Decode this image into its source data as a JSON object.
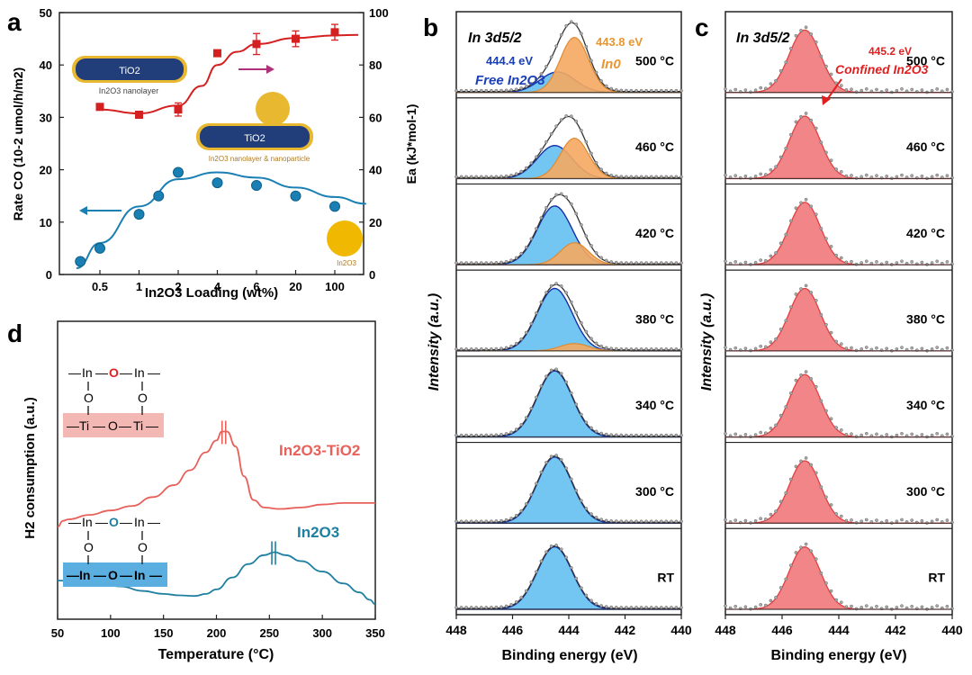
{
  "panels": {
    "a": {
      "letter": "a",
      "chart_data": {
        "type": "scatter",
        "xlabel": "In2O3 Loading (wt%)",
        "ylabel_left": "Rate CO (10-2 umol/h/m2)",
        "ylabel_right": "Ea (kJ*mol-1)",
        "x_tick_labels": [
          "0.5",
          "1",
          "2",
          "4",
          "6",
          "20",
          "100"
        ],
        "y_left_ticks": [
          "0",
          "10",
          "20",
          "30",
          "40",
          "50"
        ],
        "y_right_ticks": [
          "0",
          "20",
          "40",
          "60",
          "80",
          "100"
        ],
        "ylim_left": [
          0,
          50
        ],
        "ylim_right": [
          0,
          100
        ],
        "series": [
          {
            "axis": "left",
            "color": "#1a7fb3",
            "x_index": [
              -0.5,
              0,
              1,
              1.5,
              2,
              3,
              4,
              5,
              6
            ],
            "values": [
              2.5,
              5,
              11.5,
              15,
              19.5,
              17.5,
              17,
              15,
              13
            ],
            "fit": [
              [
                -0.6,
                1.2
              ],
              [
                0,
                6
              ],
              [
                1,
                13
              ],
              [
                2,
                18.2
              ],
              [
                3,
                19.5
              ],
              [
                4,
                18.5
              ],
              [
                5,
                16.6
              ],
              [
                6,
                14.8
              ],
              [
                6.8,
                13.5
              ]
            ]
          },
          {
            "axis": "right",
            "color": "#d42020",
            "x_index": [
              0,
              1,
              2,
              3,
              4,
              5,
              6
            ],
            "values": [
              64,
              61,
              63,
              84.5,
              88,
              90,
              92.5
            ],
            "errors": [
              0,
              1,
              2.5,
              1,
              4,
              3,
              3
            ],
            "fit": [
              [
                0,
                63
              ],
              [
                1,
                61.5
              ],
              [
                2,
                64.5
              ],
              [
                2.6,
                72
              ],
              [
                3,
                80
              ],
              [
                3.5,
                85
              ],
              [
                4,
                88
              ],
              [
                5,
                90.3
              ],
              [
                6,
                91.3
              ],
              [
                6.6,
                91.5
              ]
            ]
          }
        ]
      },
      "inset_labels": {
        "tio2_top": "TiO2",
        "nanolayer": "In2O3 nanolayer",
        "tio2_mid": "TiO2",
        "nanolayer_particle": "In2O3 nanolayer & nanoparticle",
        "particle": "In2O3"
      }
    },
    "b": {
      "letter": "b",
      "title": "In 3d5/2",
      "annotations": {
        "free_energy": "444.4 eV",
        "free_label": "Free In2O3",
        "metal_energy": "443.8 eV",
        "metal_label": "In0"
      },
      "chart_data": {
        "type": "area",
        "xlabel": "Binding energy (eV)",
        "ylabel": "Intensity (a.u.)",
        "xlim": [
          448,
          440
        ],
        "x_ticks": [
          "448",
          "446",
          "444",
          "442",
          "440"
        ],
        "spectra": [
          {
            "label": "500 °C",
            "free_center": 444.4,
            "free_height": 0.28,
            "metal_center": 443.8,
            "metal_height": 0.75
          },
          {
            "label": "460 °C",
            "free_center": 444.5,
            "free_height": 0.45,
            "metal_center": 443.8,
            "metal_height": 0.55
          },
          {
            "label": "420 °C",
            "free_center": 444.5,
            "free_height": 0.8,
            "metal_center": 443.8,
            "metal_height": 0.3
          },
          {
            "label": "380 °C",
            "free_center": 444.5,
            "free_height": 0.85,
            "metal_center": 443.8,
            "metal_height": 0.1
          },
          {
            "label": "340 °C",
            "free_center": 444.5,
            "free_height": 0.9,
            "metal_center": 443.8,
            "metal_height": 0.0
          },
          {
            "label": "300 °C",
            "free_center": 444.5,
            "free_height": 0.9,
            "metal_center": 443.8,
            "metal_height": 0.0
          },
          {
            "label": "RT",
            "free_center": 444.5,
            "free_height": 0.85,
            "metal_center": 443.8,
            "metal_height": 0.0
          }
        ]
      }
    },
    "c": {
      "letter": "c",
      "title": "In 3d5/2",
      "annotations": {
        "energy": "445.2 eV",
        "label": "Confined In2O3"
      },
      "chart_data": {
        "type": "area",
        "xlabel": "Binding energy (eV)",
        "ylabel": "Intensity (a.u.)",
        "xlim": [
          448,
          440
        ],
        "x_ticks": [
          "448",
          "446",
          "444",
          "442",
          "440"
        ],
        "spectra": [
          {
            "label": "500 °C",
            "center": 445.2,
            "height": 0.85
          },
          {
            "label": "460 °C",
            "center": 445.2,
            "height": 0.85
          },
          {
            "label": "420 °C",
            "center": 445.2,
            "height": 0.85
          },
          {
            "label": "380 °C",
            "center": 445.2,
            "height": 0.85
          },
          {
            "label": "340 °C",
            "center": 445.2,
            "height": 0.85
          },
          {
            "label": "300 °C",
            "center": 445.2,
            "height": 0.85
          },
          {
            "label": "RT",
            "center": 445.2,
            "height": 0.85
          }
        ]
      }
    },
    "d": {
      "letter": "d",
      "chart_data": {
        "type": "line",
        "xlabel": "Temperature (°C)",
        "ylabel": "H2 consumption (a.u.)",
        "xlim": [
          50,
          350
        ],
        "x_ticks": [
          "50",
          "100",
          "150",
          "200",
          "250",
          "300",
          "350"
        ],
        "series": [
          {
            "name": "In2O3-TiO2",
            "color": "#e8605a",
            "points": [
              [
                50,
                0.31
              ],
              [
                55,
                0.33
              ],
              [
                60,
                0.335
              ],
              [
                80,
                0.35
              ],
              [
                100,
                0.365
              ],
              [
                120,
                0.38
              ],
              [
                140,
                0.41
              ],
              [
                160,
                0.45
              ],
              [
                175,
                0.5
              ],
              [
                190,
                0.56
              ],
              [
                200,
                0.6
              ],
              [
                205,
                0.63
              ],
              [
                210,
                0.63
              ],
              [
                218,
                0.58
              ],
              [
                226,
                0.48
              ],
              [
                235,
                0.4
              ],
              [
                245,
                0.375
              ],
              [
                260,
                0.37
              ],
              [
                280,
                0.375
              ],
              [
                300,
                0.385
              ],
              [
                320,
                0.39
              ],
              [
                340,
                0.39
              ],
              [
                350,
                0.39
              ]
            ]
          },
          {
            "name": "In2O3",
            "color": "#1f7fa0",
            "points": [
              [
                50,
                0.13
              ],
              [
                70,
                0.125
              ],
              [
                90,
                0.12
              ],
              [
                110,
                0.11
              ],
              [
                130,
                0.095
              ],
              [
                150,
                0.085
              ],
              [
                165,
                0.08
              ],
              [
                180,
                0.078
              ],
              [
                190,
                0.085
              ],
              [
                200,
                0.1
              ],
              [
                215,
                0.14
              ],
              [
                230,
                0.185
              ],
              [
                245,
                0.215
              ],
              [
                255,
                0.225
              ],
              [
                265,
                0.215
              ],
              [
                280,
                0.195
              ],
              [
                300,
                0.16
              ],
              [
                320,
                0.12
              ],
              [
                335,
                0.09
              ],
              [
                345,
                0.065
              ],
              [
                350,
                0.05
              ]
            ]
          }
        ],
        "peak_marks": [
          207,
          254
        ]
      },
      "schemes": {
        "top_row": [
          "In",
          "O",
          "In"
        ],
        "bottom_top": [
          "Ti",
          "O",
          "Ti"
        ],
        "bottom_bot": [
          "In",
          "O",
          "In"
        ],
        "vertical_o": "O"
      }
    }
  }
}
